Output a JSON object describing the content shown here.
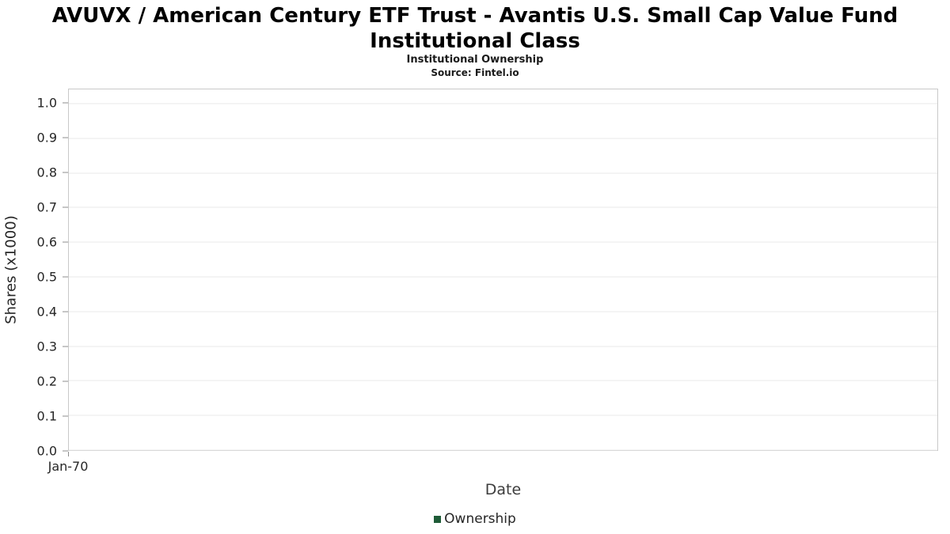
{
  "chart_data": {
    "type": "line",
    "title": "AVUVX / American Century ETF Trust - Avantis U.S. Small Cap Value Fund Institutional Class",
    "subtitle": "Institutional Ownership",
    "source": "Source: Fintel.io",
    "xlabel": "Date",
    "ylabel": "Shares (x1000)",
    "ylim": [
      0.0,
      1.041
    ],
    "yticks": [
      0.0,
      0.1,
      0.2,
      0.3,
      0.4,
      0.5,
      0.6,
      0.7,
      0.8,
      0.9,
      1.0
    ],
    "xticks": [
      "Jan-70"
    ],
    "grid": "horizontal",
    "legend_position": "bottom",
    "series": [
      {
        "name": "Ownership",
        "x": [],
        "values": []
      }
    ],
    "legend": {
      "label": "Ownership",
      "marker_color": "#1f5c38"
    },
    "colors": {
      "grid": "#e9e9e9",
      "plot_border": "#c9c9c9",
      "tick": "#8c8c8c",
      "text": "#262626"
    }
  }
}
